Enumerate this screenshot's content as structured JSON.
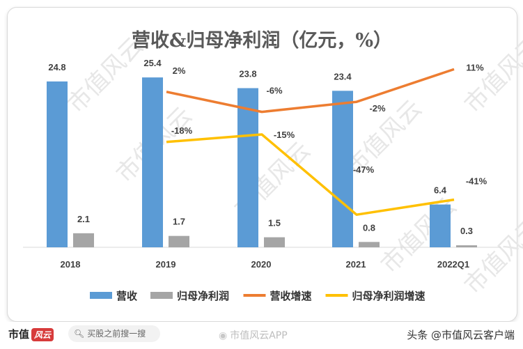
{
  "chart_data": {
    "type": "bar",
    "title": "营收&归母净利润（亿元，%）",
    "categories": [
      "2018",
      "2019",
      "2020",
      "2021",
      "2022Q1"
    ],
    "series": [
      {
        "name": "营收",
        "kind": "bar",
        "axis": "left",
        "color": "#5B9BD5",
        "values": [
          24.8,
          25.4,
          23.8,
          23.4,
          6.4
        ]
      },
      {
        "name": "归母净利润",
        "kind": "bar",
        "axis": "left",
        "color": "#A5A5A5",
        "values": [
          2.1,
          1.7,
          1.5,
          0.8,
          0.3
        ]
      },
      {
        "name": "营收增速",
        "kind": "line",
        "axis": "right",
        "color": "#ED7D31",
        "values": [
          null,
          2,
          -6,
          -2,
          11
        ],
        "labels": [
          "",
          "2%",
          "-6%",
          "-2%",
          "11%"
        ]
      },
      {
        "name": "归母净利润增速",
        "kind": "line",
        "axis": "right",
        "color": "#FFC000",
        "values": [
          null,
          -18,
          -15,
          -47,
          -41
        ],
        "labels": [
          "",
          "-18%",
          "-15%",
          "-47%",
          "-41%"
        ]
      }
    ],
    "bar_labels": [
      [
        "24.8",
        "25.4",
        "23.8",
        "23.4",
        "6.4"
      ],
      [
        "2.1",
        "1.7",
        "1.5",
        "0.8",
        "0.3"
      ]
    ],
    "ylim_left": [
      0,
      30
    ],
    "ylim_right": [
      -60,
      20
    ],
    "grid": false,
    "legend_position": "bottom"
  },
  "watermark": "市值风云",
  "bottom_bar": {
    "brand": "市值",
    "brand_logo": "风云",
    "search_icon": "search-icon",
    "search_placeholder": "买股之前搜一搜",
    "app_icon": "weibo-icon",
    "app_name": "市值风云APP",
    "credit": "头条 @市值风云客户端"
  }
}
